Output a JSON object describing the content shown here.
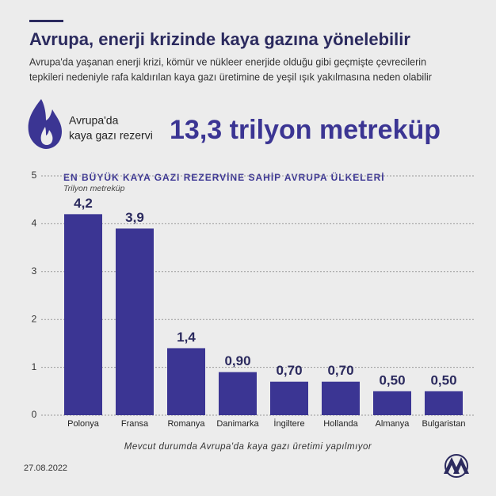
{
  "header": {
    "title": "Avrupa, enerji krizinde kaya gazına yönelebilir",
    "subtitle": [
      "Avrupa'da yaşanan enerji krizi, kömür ve nükleer enerjide olduğu gibi geçmişte çevrecilerin",
      "tepkileri nedeniyle rafa kaldırılan kaya gazı üretimine de yeşil ışık yakılmasına neden olabilir"
    ],
    "stat_label": [
      "Avrupa'da",
      "kaya gazı rezervi"
    ],
    "stat_value": "13,3 trilyon metreküp"
  },
  "chart_data": {
    "type": "bar",
    "title": "EN BÜYÜK KAYA GAZI REZERVİNE SAHİP AVRUPA ÜLKELERİ",
    "y_label": "Trilyon metreküp",
    "categories": [
      "Polonya",
      "Fransa",
      "Romanya",
      "Danimarka",
      "İngiltere",
      "Hollanda",
      "Almanya",
      "Bulgaristan"
    ],
    "values": [
      4.2,
      3.9,
      1.4,
      0.9,
      0.7,
      0.7,
      0.5,
      0.5
    ],
    "value_labels": [
      "4,2",
      "3,9",
      "1,4",
      "0,90",
      "0,70",
      "0,70",
      "0,50",
      "0,50"
    ],
    "color": "#3b3593",
    "ylim": [
      0,
      5
    ],
    "yticks": [
      0,
      1,
      2,
      3,
      4,
      5
    ],
    "grid": true,
    "note": "Mevcut durumda Avrupa'da kaya gazı üretimi yapılmıyor"
  },
  "footer": {
    "date": "27.08.2022"
  }
}
